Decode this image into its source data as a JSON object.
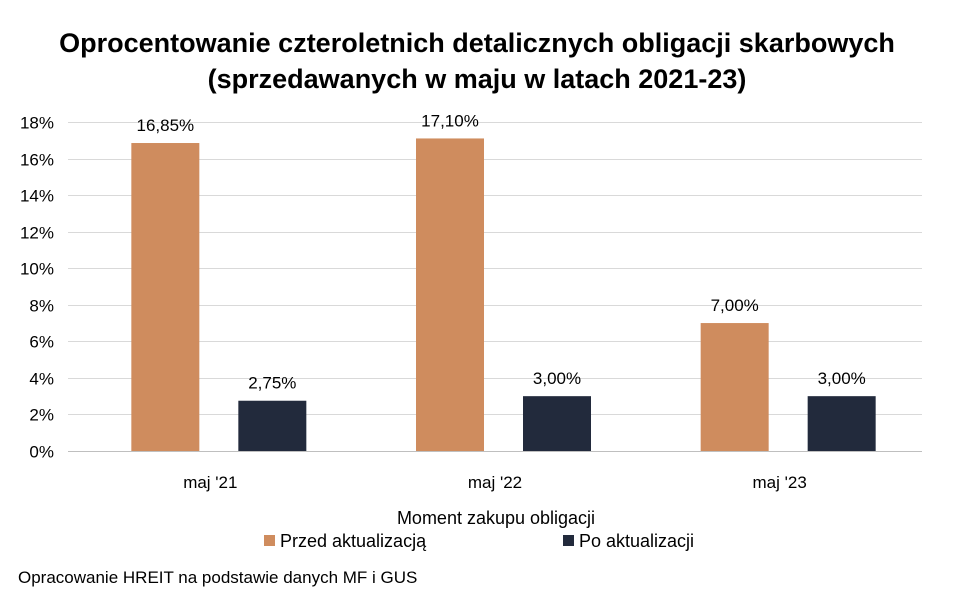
{
  "chart_data": {
    "type": "bar",
    "title_lines": [
      "Oprocentowanie czteroletnich detalicznych obligacji skarbowych",
      "(sprzedawanych w maju w latach 2021-23)"
    ],
    "categories": [
      "maj '21",
      "maj '22",
      "maj '23"
    ],
    "series": [
      {
        "name": "Przed aktualizacją",
        "color": "#cf8c5e",
        "values": [
          16.85,
          17.1,
          7.0
        ],
        "labels": [
          "16,85%",
          "17,10%",
          "7,00%"
        ]
      },
      {
        "name": "Po aktualizacji",
        "color": "#222a3c",
        "values": [
          2.75,
          3.0,
          3.0
        ],
        "labels": [
          "2,75%",
          "3,00%",
          "3,00%"
        ]
      }
    ],
    "y_ticks": [
      {
        "value": 0,
        "label": "0%"
      },
      {
        "value": 2,
        "label": "2%"
      },
      {
        "value": 4,
        "label": "4%"
      },
      {
        "value": 6,
        "label": "6%"
      },
      {
        "value": 8,
        "label": "8%"
      },
      {
        "value": 10,
        "label": "10%"
      },
      {
        "value": 12,
        "label": "12%"
      },
      {
        "value": 14,
        "label": "14%"
      },
      {
        "value": 16,
        "label": "16%"
      },
      {
        "value": 18,
        "label": "18%"
      }
    ],
    "ylim": [
      0,
      18
    ],
    "xlabel": "Moment zakupu obligacji",
    "ylabel": "",
    "grid": true,
    "legend_position": "bottom"
  },
  "source_note": "Opracowanie HREIT na podstawie danych MF i GUS"
}
